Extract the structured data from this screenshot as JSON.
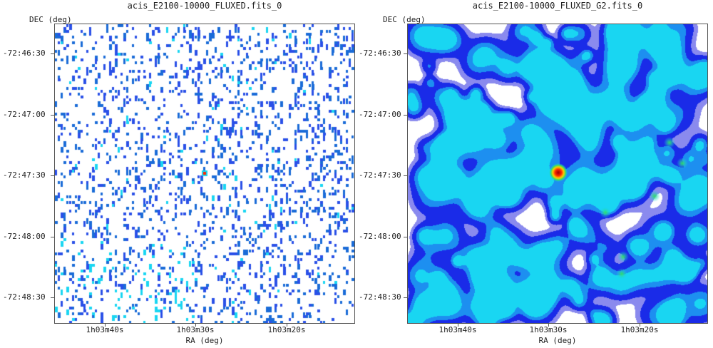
{
  "chart_data": [
    {
      "type": "heatmap",
      "title": "acis_E2100-10000_FLUXED.fits_0",
      "xlabel": "RA (deg)",
      "ylabel": "DEC (deg)",
      "x_ticks": [
        "1h03m40s",
        "1h03m30s",
        "1h03m20s"
      ],
      "y_ticks": [
        "-72:46:30",
        "-72:47:00",
        "-72:47:30",
        "-72:48:00",
        "-72:48:30"
      ],
      "colormap": [
        "#ffffff",
        "#2a50e8",
        "#1a6bd8",
        "#19d6f2",
        "#ff2a00"
      ],
      "source": {
        "ra": "1h03m30s",
        "dec": "-72:47:28"
      }
    },
    {
      "type": "heatmap",
      "title": "acis_E2100-10000_FLUXED_G2.fits_0",
      "xlabel": "RA (deg)",
      "ylabel": "DEC (deg)",
      "x_ticks": [
        "1h03m40s",
        "1h03m30s",
        "1h03m20s"
      ],
      "y_ticks": [
        "-72:46:30",
        "-72:47:00",
        "-72:47:30",
        "-72:48:00",
        "-72:48:30"
      ],
      "colormap": [
        "#ffffff",
        "#8a8aee",
        "#1a2be8",
        "#1d8ff0",
        "#19d6f2",
        "#33e060",
        "#ff2a00",
        "#9a0000"
      ],
      "source": {
        "ra": "1h03m30s",
        "dec": "-72:47:28"
      }
    }
  ]
}
